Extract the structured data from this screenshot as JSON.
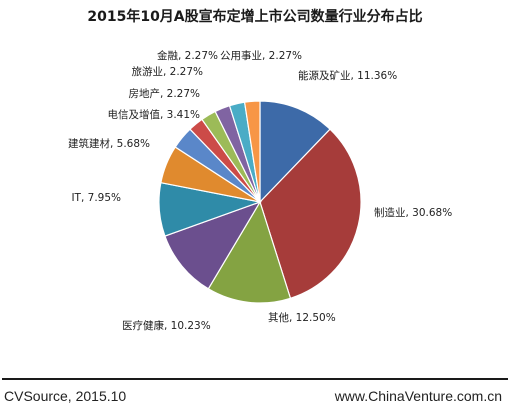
{
  "chart_data": {
    "type": "pie",
    "title": "2015年10月A股宣布定增上市公司数量行业分布占比",
    "slices": [
      {
        "label": "能源及矿业",
        "value": 11.36,
        "display": "11.36%",
        "color": "#3d6aa8"
      },
      {
        "label": "制造业",
        "value": 30.68,
        "display": "30.68%",
        "color": "#a63c3a"
      },
      {
        "label": "其他",
        "value": 12.5,
        "display": "12.50%",
        "color": "#84a342"
      },
      {
        "label": "医疗健康",
        "value": 10.23,
        "display": "10.23%",
        "color": "#6b4f8e"
      },
      {
        "label": "IT",
        "value": 7.95,
        "display": "7.95%",
        "color": "#2f8ba8"
      },
      {
        "label": "建筑建材",
        "value": 5.68,
        "display": "5.68%",
        "color": "#e08a2e"
      },
      {
        "label": "电信及增值",
        "value": 3.41,
        "display": "3.41%",
        "color": "#5a87c9"
      },
      {
        "label": "房地产",
        "value": 2.27,
        "display": "2.27%",
        "color": "#cc4b48"
      },
      {
        "label": "旅游业",
        "value": 2.27,
        "display": "2.27%",
        "color": "#9cbb58"
      },
      {
        "label": "金融",
        "value": 2.27,
        "display": "2.27%",
        "color": "#8064a2"
      },
      {
        "label": "公用事业",
        "value": 2.27,
        "display": "2.27%",
        "color": "#4aacc6"
      },
      {
        "label": "",
        "value": 2.27,
        "display": "",
        "color": "#f79646"
      }
    ]
  },
  "footer": {
    "source": "CVSource, 2015.10",
    "website": "www.ChinaVenture.com.cn"
  }
}
